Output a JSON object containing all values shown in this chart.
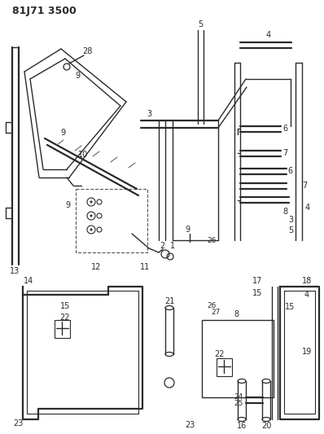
{
  "title": "81J71 3500",
  "bg_color": "#ffffff",
  "line_color": "#2a2a2a",
  "title_fontsize": 9,
  "label_fontsize": 7
}
